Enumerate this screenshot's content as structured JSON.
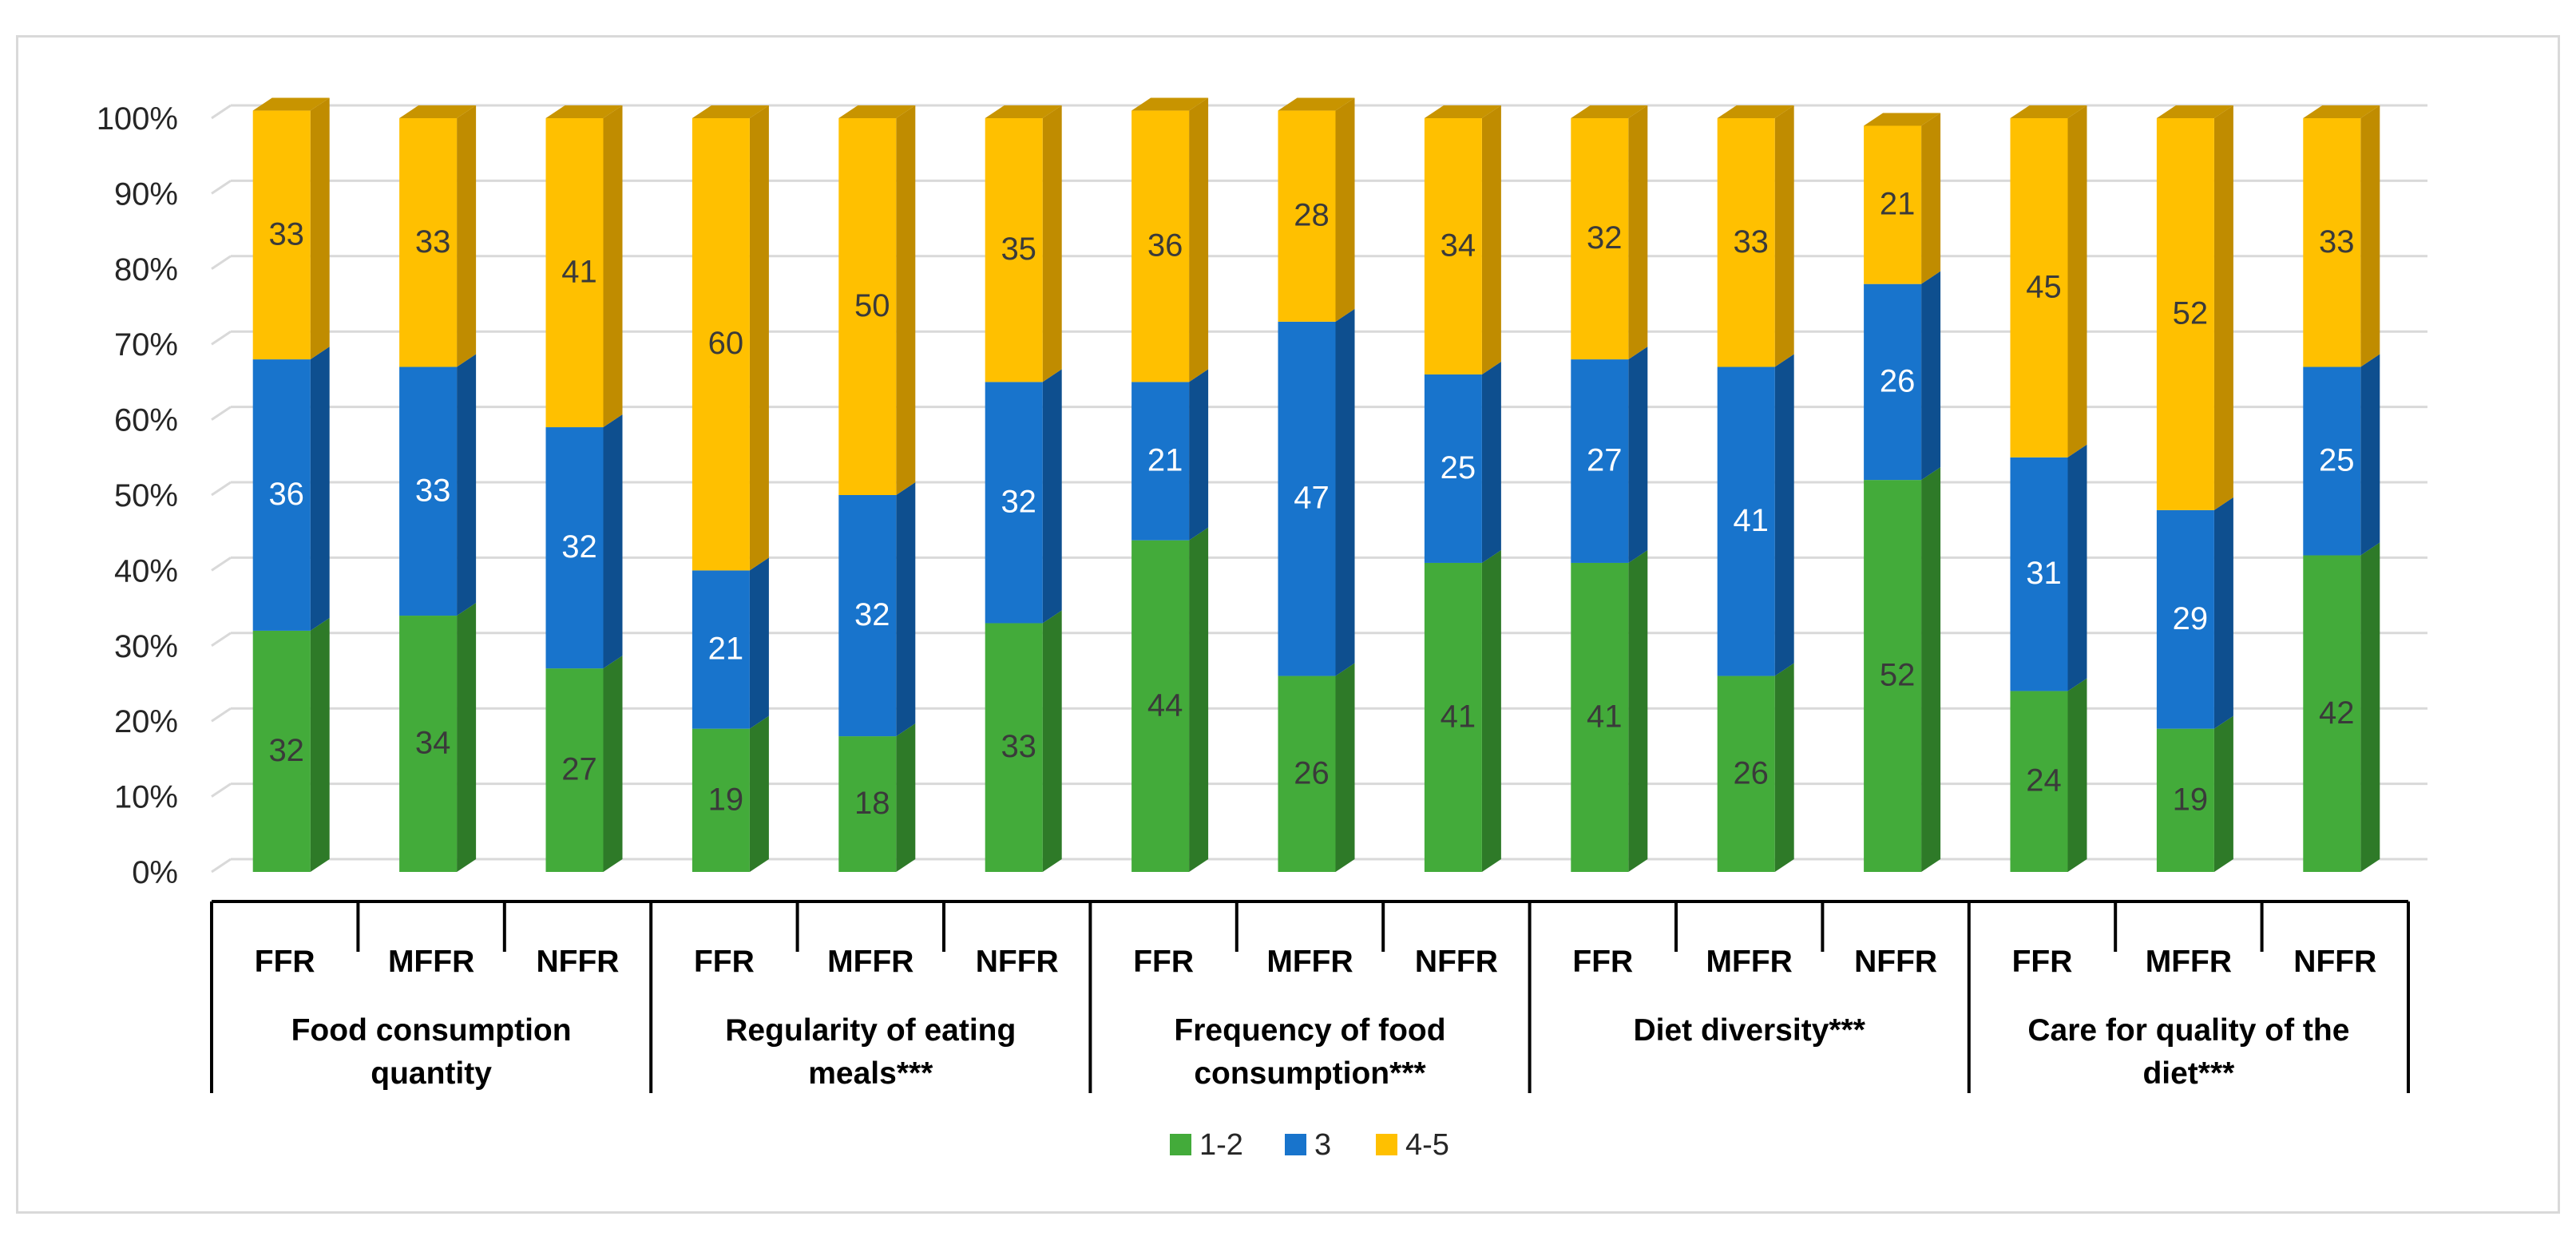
{
  "chart_data": {
    "type": "bar",
    "stacked": true,
    "percent": true,
    "ylim": [
      0,
      100
    ],
    "yticks": [
      "0%",
      "10%",
      "20%",
      "30%",
      "40%",
      "50%",
      "60%",
      "70%",
      "80%",
      "90%",
      "100%"
    ],
    "groups": [
      {
        "label": "Food consumption quantity",
        "lines": [
          "Food consumption",
          "quantity"
        ],
        "categories": [
          "FFR",
          "MFFR",
          "NFFR"
        ]
      },
      {
        "label": "Regularity of eating meals***",
        "lines": [
          "Regularity of eating",
          "meals***"
        ],
        "categories": [
          "FFR",
          "MFFR",
          "NFFR"
        ]
      },
      {
        "label": "Frequency of food consumption***",
        "lines": [
          "Frequency of food",
          "consumption***"
        ],
        "categories": [
          "FFR",
          "MFFR",
          "NFFR"
        ]
      },
      {
        "label": "Diet diversity***",
        "lines": [
          "Diet diversity***"
        ],
        "categories": [
          "FFR",
          "MFFR",
          "NFFR"
        ]
      },
      {
        "label": "Care for quality of the diet***",
        "lines": [
          "Care for quality of the",
          "diet***"
        ],
        "categories": [
          "FFR",
          "MFFR",
          "NFFR"
        ]
      }
    ],
    "series": [
      {
        "name": "1-2",
        "color": "#43ab3a",
        "side": "#2e7a28",
        "top": "#2e7a28",
        "label_color": "#3a3a3a",
        "values": [
          32,
          34,
          27,
          19,
          18,
          33,
          44,
          26,
          41,
          41,
          26,
          52,
          24,
          19,
          42
        ]
      },
      {
        "name": "3",
        "color": "#1874cc",
        "side": "#0e4f8f",
        "top": "#0e4f8f",
        "label_color": "#ffffff",
        "values": [
          36,
          33,
          32,
          21,
          32,
          32,
          21,
          47,
          25,
          27,
          41,
          26,
          31,
          29,
          25
        ]
      },
      {
        "name": "4-5",
        "color": "#ffc000",
        "side": "#c08c00",
        "top": "#c89400",
        "label_color": "#3a3a3a",
        "values": [
          33,
          33,
          41,
          60,
          50,
          35,
          36,
          28,
          34,
          32,
          33,
          21,
          45,
          52,
          33
        ]
      }
    ]
  }
}
